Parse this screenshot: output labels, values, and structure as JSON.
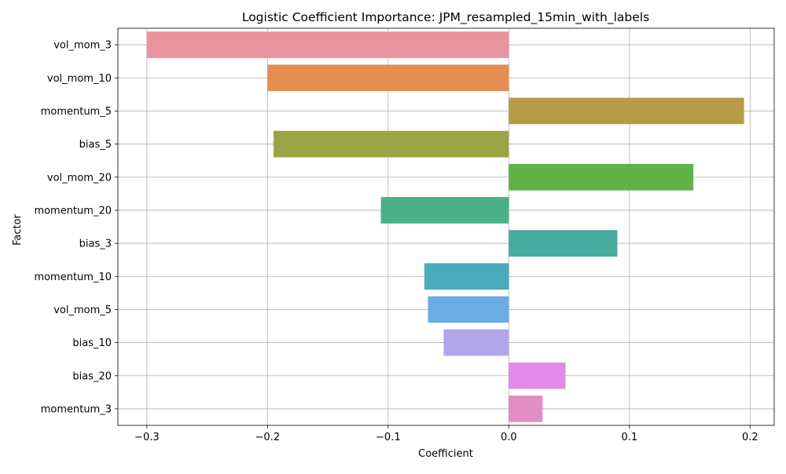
{
  "chart_data": {
    "type": "bar",
    "orientation": "horizontal",
    "title": "Logistic Coefficient Importance: JPM_resampled_15min_with_labels",
    "xlabel": "Coefficient",
    "ylabel": "Factor",
    "xlim": [
      -0.324,
      0.22
    ],
    "xticks": [
      -0.3,
      -0.2,
      -0.1,
      0.0,
      0.1,
      0.2
    ],
    "xtick_labels": [
      "−0.3",
      "−0.2",
      "−0.1",
      "0.0",
      "0.1",
      "0.2"
    ],
    "grid": true,
    "categories": [
      "vol_mom_3",
      "vol_mom_10",
      "momentum_5",
      "bias_5",
      "vol_mom_20",
      "momentum_20",
      "bias_3",
      "momentum_10",
      "vol_mom_5",
      "bias_10",
      "bias_20",
      "momentum_3"
    ],
    "values": [
      -0.3,
      -0.2,
      0.195,
      -0.195,
      0.153,
      -0.106,
      0.09,
      -0.07,
      -0.067,
      -0.054,
      0.047,
      0.028
    ],
    "colors": [
      "#ea929d",
      "#e58e52",
      "#b89b48",
      "#9aa544",
      "#5fb246",
      "#4ab08a",
      "#47ab9f",
      "#4aabbd",
      "#6aace3",
      "#b2a6eb",
      "#e18aea",
      "#e38dc5"
    ]
  }
}
